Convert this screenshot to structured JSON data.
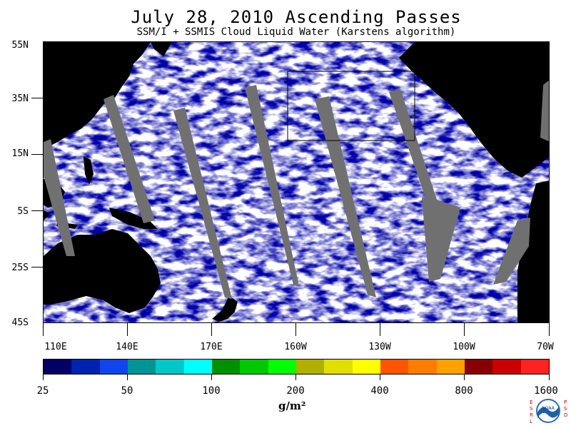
{
  "title": "July 28, 2010  Ascending Passes",
  "subtitle": "SSM/I + SSMIS Cloud Liquid Water (Karstens algorithm)",
  "map": {
    "region": "Pacific Ocean",
    "lon_range": [
      110,
      290
    ],
    "lat_range": [
      -45,
      55
    ],
    "lat_labels": [
      "55N",
      "35N",
      "15N",
      "5S",
      "25S",
      "45S"
    ],
    "lon_labels": [
      "110E",
      "140E",
      "170E",
      "160W",
      "130W",
      "100W",
      "70W"
    ],
    "colors": {
      "land": "#000000",
      "no_data_swath": "#707070",
      "clear_ocean": "#ffffff"
    }
  },
  "colorbar": {
    "colors": [
      "#000066",
      "#0022b0",
      "#1144ee",
      "#009494",
      "#00c8c8",
      "#00ffff",
      "#009000",
      "#00c800",
      "#00ff00",
      "#b0b000",
      "#e0e000",
      "#ffff00",
      "#ff5500",
      "#ff7c00",
      "#ffa000",
      "#880000",
      "#cc0000",
      "#ff2222"
    ],
    "labels": [
      "25",
      "50",
      "100",
      "200",
      "400",
      "800",
      "1600"
    ],
    "units": "g/m²"
  },
  "logo": {
    "text": "NOAA",
    "left_letters": "ESRL",
    "right_letters": "PSD"
  }
}
